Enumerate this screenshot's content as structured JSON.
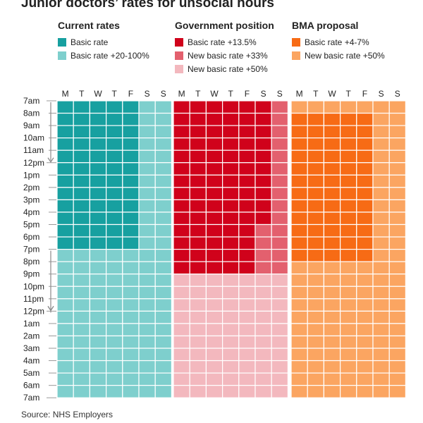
{
  "title": "Junior doctors’ rates for unsocial hours",
  "source": "Source: NHS Employers",
  "legend": {
    "groups": [
      {
        "heading": "Current rates",
        "items": [
          {
            "label": "Basic rate",
            "color": "#17a0a0"
          },
          {
            "label": "Basic rate +20-100%",
            "color": "#7ecfcd"
          }
        ]
      },
      {
        "heading": "Government position",
        "items": [
          {
            "label": "Basic rate +13.5%",
            "color": "#d0021b"
          },
          {
            "label": "New basic rate +33%",
            "color": "#e3606e"
          },
          {
            "label": "New basic rate +50%",
            "color": "#f3b8be"
          }
        ]
      },
      {
        "heading": "BMA proposal",
        "items": [
          {
            "label": "Basic rate +4-7%",
            "color": "#f76b15"
          },
          {
            "label": "New basic rate +50%",
            "color": "#fba561"
          }
        ]
      }
    ]
  },
  "chart_data": {
    "type": "heatmap",
    "days": [
      "M",
      "T",
      "W",
      "T",
      "F",
      "S",
      "S"
    ],
    "hours": [
      "7am",
      "8am",
      "9am",
      "10am",
      "11am",
      "12pm",
      "1pm",
      "2pm",
      "3pm",
      "4pm",
      "5pm",
      "6pm",
      "7pm",
      "8pm",
      "9pm",
      "10pm",
      "11pm",
      "12pm",
      "1am",
      "2am",
      "3am",
      "4am",
      "5am",
      "6am",
      "7am"
    ],
    "panels": [
      {
        "name": "Current rates",
        "rows": [
          "BBBBBRR",
          "BBBBBRR",
          "BBBBBRR",
          "BBBBBRR",
          "BBBBBRR",
          "BBBBBRR",
          "BBBBBRR",
          "BBBBBRR",
          "BBBBBRR",
          "BBBBBRR",
          "BBBBBRR",
          "BBBBBRR",
          "RRRRRRR",
          "RRRRRRR",
          "RRRRRRR",
          "RRRRRRR",
          "RRRRRRR",
          "RRRRRRR",
          "RRRRRRR",
          "RRRRRRR",
          "RRRRRRR",
          "RRRRRRR",
          "RRRRRRR",
          "RRRRRRR"
        ],
        "codes": {
          "B": "Basic rate",
          "R": "Basic rate +20-100%"
        }
      },
      {
        "name": "Government position",
        "rows": [
          "BBBBBBM",
          "BBBBBBM",
          "BBBBBBM",
          "BBBBBBM",
          "BBBBBBM",
          "BBBBBBM",
          "BBBBBBM",
          "BBBBBBM",
          "BBBBBBM",
          "BBBBBBM",
          "BBBBBMM",
          "BBBBBMM",
          "BBBBBMM",
          "BBBBBMM",
          "PPPPPPP",
          "PPPPPPP",
          "PPPPPPP",
          "PPPPPPP",
          "PPPPPPP",
          "PPPPPPP",
          "PPPPPPP",
          "PPPPPPP",
          "PPPPPPP",
          "PPPPPPP"
        ],
        "codes": {
          "B": "Basic rate +13.5%",
          "M": "New basic rate +33%",
          "P": "New basic rate +50%"
        }
      },
      {
        "name": "BMA proposal",
        "rows": [
          "NNNNNNN",
          "BBBBBNN",
          "BBBBBNN",
          "BBBBBNN",
          "BBBBBNN",
          "BBBBBNN",
          "BBBBBNN",
          "BBBBBNN",
          "BBBBBNN",
          "BBBBBNN",
          "BBBBBNN",
          "BBBBBNN",
          "BBBBBNN",
          "NNNNNNN",
          "NNNNNNN",
          "NNNNNNN",
          "NNNNNNN",
          "NNNNNNN",
          "NNNNNNN",
          "NNNNNNN",
          "NNNNNNN",
          "NNNNNNN",
          "NNNNNNN",
          "NNNNNNN"
        ],
        "codes": {
          "B": "Basic rate +4-7%",
          "N": "New basic rate +50%"
        }
      }
    ],
    "grid": true
  }
}
